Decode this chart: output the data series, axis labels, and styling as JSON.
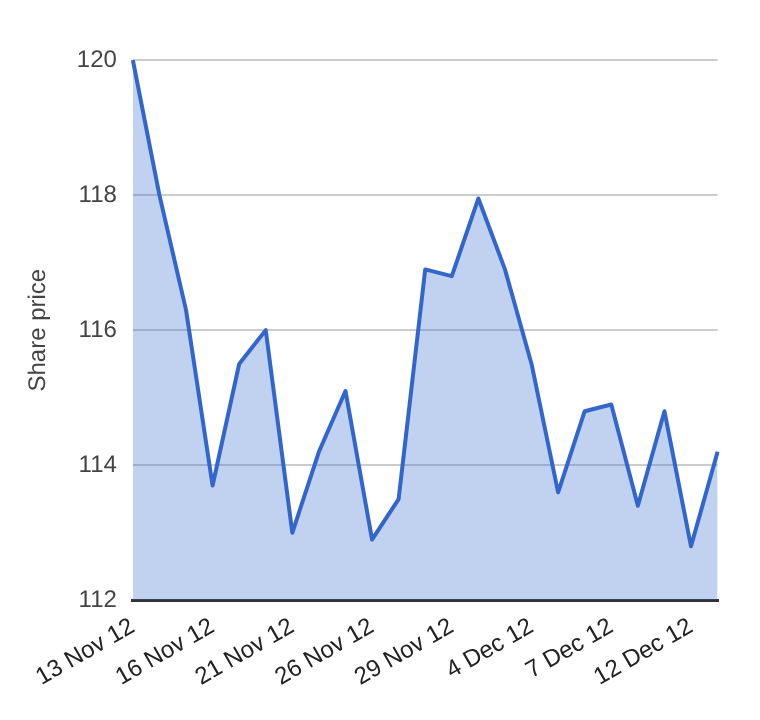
{
  "chart_data": {
    "type": "area",
    "ylabel": "Share price",
    "categories": [
      "13 Nov 12",
      null,
      null,
      "16 Nov 12",
      null,
      null,
      "21 Nov 12",
      null,
      null,
      "26 Nov 12",
      null,
      null,
      "29 Nov 12",
      null,
      null,
      "4 Dec 12",
      null,
      null,
      "7 Dec 12",
      null,
      null,
      "12 Dec 12",
      null
    ],
    "series": [
      {
        "color": "#3366cc",
        "values": [
          120,
          118.0,
          116.3,
          113.7,
          115.5,
          116.0,
          113.0,
          114.2,
          115.1,
          112.9,
          113.5,
          116.9,
          116.8,
          117.95,
          116.9,
          115.5,
          113.6,
          114.8,
          114.9,
          113.4,
          114.8,
          112.8,
          114.2
        ]
      }
    ],
    "ylim": [
      112,
      120
    ],
    "yticks": [
      112,
      114,
      116,
      118,
      120
    ],
    "grid": "y",
    "legend": false
  }
}
